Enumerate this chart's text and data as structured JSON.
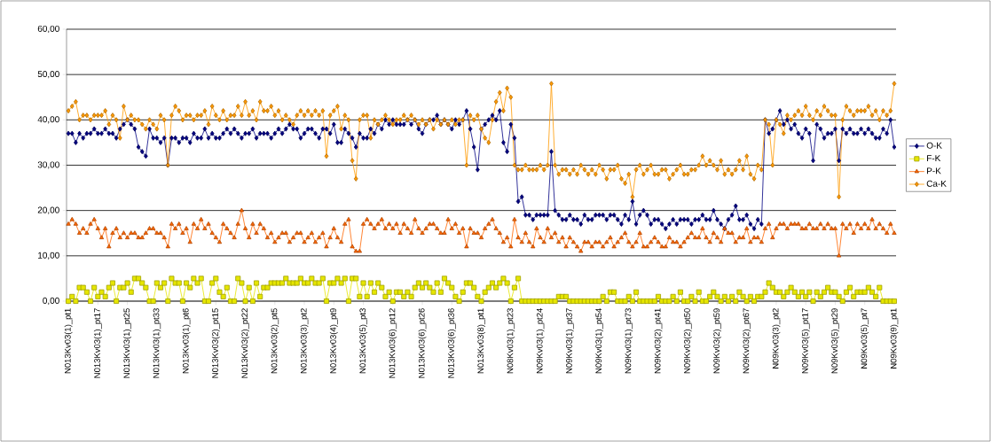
{
  "chart_data": {
    "type": "line",
    "categories": [
      "N013Kv03(1)_pt1",
      null,
      null,
      null,
      null,
      null,
      null,
      null,
      "N013Kv03(1)_pt17",
      null,
      null,
      null,
      null,
      null,
      null,
      null,
      "N013Kv03(1)_pt25",
      null,
      null,
      null,
      null,
      null,
      null,
      null,
      "N013Kv03(1)_pt33",
      null,
      null,
      null,
      null,
      null,
      null,
      null,
      "N013Kv03(1)_pt6",
      null,
      null,
      null,
      null,
      null,
      null,
      null,
      "N013Kv03(2)_pt15",
      null,
      null,
      null,
      null,
      null,
      null,
      null,
      "N013Kv03(2)_pt22",
      null,
      null,
      null,
      null,
      null,
      null,
      null,
      "N013Kv03(2)_pt5",
      null,
      null,
      null,
      null,
      null,
      null,
      null,
      "N013Kv03(3)_pt2",
      null,
      null,
      null,
      null,
      null,
      null,
      null,
      "N013Kv03(4)_pt9",
      null,
      null,
      null,
      null,
      null,
      null,
      null,
      "N013Kv03(5)_pt3",
      null,
      null,
      null,
      null,
      null,
      null,
      null,
      "N013Kv03(6)_pt12",
      null,
      null,
      null,
      null,
      null,
      null,
      null,
      "N013Kv03(6)_pt26",
      null,
      null,
      null,
      null,
      null,
      null,
      null,
      "N013Kv03(6)_pt36",
      null,
      null,
      null,
      null,
      null,
      null,
      null,
      "N013Kv03(8)_pt1",
      null,
      null,
      null,
      null,
      null,
      null,
      null,
      "N08Kv03(1)_pt23",
      null,
      null,
      null,
      null,
      null,
      null,
      null,
      "N09Kv03(1)_pt24",
      null,
      null,
      null,
      null,
      null,
      null,
      null,
      "N09Kv03(1)_pt37",
      null,
      null,
      null,
      null,
      null,
      null,
      null,
      "N09Kv03(1)_pt54",
      null,
      null,
      null,
      null,
      null,
      null,
      null,
      "N09Kv03(1)_pt73",
      null,
      null,
      null,
      null,
      null,
      null,
      null,
      "N09Kv03(2)_pt41",
      null,
      null,
      null,
      null,
      null,
      null,
      null,
      "N09Kv03(2)_pt50",
      null,
      null,
      null,
      null,
      null,
      null,
      null,
      "N09Kv03(2)_pt59",
      null,
      null,
      null,
      null,
      null,
      null,
      null,
      "N09Kv03(2)_pt67",
      null,
      null,
      null,
      null,
      null,
      null,
      null,
      "N09Kv03(3)_pt2",
      null,
      null,
      null,
      null,
      null,
      null,
      null,
      "N09Kv03(5)_pt17",
      null,
      null,
      null,
      null,
      null,
      null,
      null,
      "N09Kv03(5)_pt29",
      null,
      null,
      null,
      null,
      null,
      null,
      null,
      "N09Kv03(5)_pt7",
      null,
      null,
      null,
      null,
      null,
      null,
      null,
      "N09Kv03(9)_pt1"
    ],
    "series": [
      {
        "name": "O-K",
        "color": "#000080",
        "marker": "diamond",
        "values": [
          37,
          37,
          35,
          37,
          36,
          37,
          37,
          38,
          37,
          37,
          38,
          37,
          37,
          36,
          38,
          39,
          40,
          39,
          38,
          34,
          33,
          32,
          38,
          36,
          36,
          35,
          36,
          30,
          36,
          36,
          35,
          36,
          36,
          35,
          37,
          36,
          36,
          38,
          36,
          37,
          36,
          36,
          37,
          38,
          37,
          38,
          37,
          36,
          37,
          37,
          38,
          36,
          37,
          37,
          37,
          36,
          37,
          38,
          37,
          38,
          39,
          38,
          38,
          36,
          37,
          38,
          38,
          37,
          36,
          38,
          38,
          37,
          39,
          35,
          35,
          38,
          37,
          36,
          34,
          37,
          36,
          36,
          38,
          37,
          39,
          38,
          40,
          39,
          40,
          39,
          39,
          39,
          40,
          39,
          40,
          38,
          37,
          39,
          40,
          40,
          41,
          39,
          40,
          39,
          38,
          40,
          39,
          40,
          42,
          38,
          34,
          29,
          38,
          39,
          40,
          41,
          40,
          42,
          35,
          33,
          39,
          36,
          22,
          23,
          19,
          19,
          18,
          19,
          19,
          19,
          19,
          33,
          20,
          19,
          18,
          18,
          19,
          18,
          18,
          17,
          19,
          18,
          18,
          19,
          19,
          19,
          18,
          19,
          19,
          18,
          17,
          19,
          18,
          22,
          17,
          19,
          20,
          19,
          17,
          18,
          18,
          17,
          16,
          17,
          18,
          17,
          18,
          18,
          18,
          17,
          18,
          18,
          19,
          18,
          18,
          20,
          18,
          17,
          16,
          18,
          19,
          21,
          18,
          18,
          19,
          17,
          16,
          18,
          17,
          40,
          37,
          38,
          40,
          42,
          39,
          40,
          38,
          39,
          37,
          36,
          38,
          37,
          31,
          39,
          38,
          36,
          37,
          37,
          38,
          31,
          38,
          37,
          38,
          37,
          37,
          38,
          37,
          38,
          37,
          36,
          36,
          38,
          37,
          40,
          34
        ]
      },
      {
        "name": "F-K",
        "color": "#e6e600",
        "marker": "square",
        "values": [
          0,
          1,
          0,
          3,
          3,
          2,
          0,
          3,
          1,
          2,
          1,
          3,
          4,
          0,
          3,
          3,
          4,
          2,
          5,
          5,
          4,
          3,
          0,
          0,
          4,
          3,
          4,
          0,
          5,
          4,
          4,
          0,
          4,
          3,
          5,
          4,
          5,
          0,
          0,
          4,
          5,
          2,
          1,
          3,
          0,
          0,
          5,
          4,
          0,
          3,
          0,
          4,
          1,
          3,
          3,
          4,
          4,
          4,
          4,
          5,
          4,
          4,
          4,
          5,
          4,
          4,
          5,
          4,
          4,
          5,
          0,
          4,
          4,
          5,
          4,
          5,
          0,
          5,
          5,
          1,
          4,
          1,
          4,
          2,
          4,
          3,
          1,
          2,
          0,
          2,
          2,
          1,
          2,
          1,
          3,
          4,
          3,
          4,
          3,
          2,
          4,
          2,
          5,
          4,
          3,
          1,
          0,
          2,
          4,
          4,
          3,
          1,
          0,
          2,
          3,
          4,
          3,
          4,
          5,
          4,
          0,
          3,
          5,
          0,
          0,
          0,
          0,
          0,
          0,
          0,
          0,
          0,
          0,
          1,
          1,
          1,
          0,
          0,
          0,
          0,
          0,
          0,
          0,
          0,
          0,
          1,
          0,
          2,
          2,
          0,
          0,
          0,
          1,
          0,
          2,
          0,
          0,
          0,
          0,
          0,
          1,
          0,
          0,
          0,
          1,
          0,
          2,
          0,
          0,
          1,
          0,
          2,
          0,
          0,
          1,
          2,
          1,
          0,
          1,
          0,
          1,
          0,
          2,
          1,
          0,
          1,
          0,
          1,
          1,
          2,
          4,
          3,
          2,
          2,
          1,
          2,
          3,
          2,
          1,
          2,
          1,
          2,
          0,
          2,
          1,
          2,
          3,
          2,
          2,
          1,
          0,
          2,
          3,
          1,
          2,
          2,
          2,
          3,
          2,
          1,
          3,
          0,
          0,
          0,
          0
        ]
      },
      {
        "name": "P-K",
        "color": "#ff6600",
        "marker": "triangle",
        "values": [
          17,
          18,
          17,
          15,
          16,
          15,
          17,
          18,
          16,
          14,
          16,
          12,
          15,
          16,
          14,
          15,
          14,
          15,
          15,
          14,
          14,
          15,
          16,
          16,
          15,
          15,
          14,
          12,
          17,
          16,
          17,
          15,
          16,
          13,
          17,
          16,
          18,
          16,
          17,
          15,
          14,
          13,
          17,
          16,
          15,
          14,
          17,
          20,
          16,
          14,
          17,
          15,
          17,
          16,
          14,
          15,
          13,
          14,
          15,
          15,
          13,
          14,
          15,
          15,
          13,
          14,
          15,
          13,
          14,
          15,
          12,
          14,
          16,
          14,
          13,
          17,
          18,
          12,
          11,
          11,
          17,
          18,
          17,
          16,
          17,
          18,
          16,
          17,
          16,
          17,
          15,
          17,
          16,
          15,
          18,
          16,
          15,
          16,
          17,
          17,
          16,
          15,
          15,
          18,
          16,
          17,
          15,
          16,
          12,
          16,
          15,
          15,
          14,
          16,
          17,
          18,
          16,
          15,
          13,
          14,
          12,
          18,
          14,
          13,
          15,
          13,
          12,
          16,
          14,
          13,
          16,
          14,
          15,
          13,
          14,
          12,
          14,
          13,
          12,
          11,
          13,
          13,
          12,
          13,
          13,
          12,
          13,
          14,
          12,
          13,
          14,
          15,
          13,
          12,
          13,
          15,
          12,
          12,
          13,
          14,
          13,
          12,
          12,
          14,
          13,
          13,
          12,
          13,
          14,
          15,
          14,
          14,
          16,
          14,
          13,
          15,
          14,
          13,
          16,
          15,
          15,
          13,
          14,
          14,
          16,
          13,
          14,
          14,
          13,
          16,
          17,
          14,
          16,
          17,
          17,
          16,
          17,
          17,
          17,
          16,
          16,
          17,
          16,
          16,
          17,
          16,
          17,
          16,
          16,
          10,
          17,
          16,
          17,
          15,
          17,
          16,
          17,
          16,
          18,
          16,
          17,
          16,
          15,
          17,
          15
        ]
      },
      {
        "name": "Ca-K",
        "color": "#ff9900",
        "marker": "diamond",
        "values": [
          42,
          43,
          44,
          40,
          41,
          41,
          40,
          41,
          41,
          41,
          42,
          39,
          41,
          40,
          36,
          43,
          40,
          41,
          40,
          40,
          39,
          38,
          40,
          39,
          38,
          41,
          40,
          30,
          41,
          43,
          42,
          40,
          41,
          41,
          40,
          41,
          41,
          42,
          39,
          43,
          41,
          40,
          42,
          40,
          41,
          41,
          43,
          41,
          44,
          41,
          42,
          40,
          44,
          42,
          42,
          43,
          41,
          42,
          40,
          41,
          40,
          39,
          41,
          42,
          41,
          42,
          41,
          42,
          41,
          42,
          32,
          41,
          42,
          43,
          38,
          41,
          40,
          31,
          27,
          40,
          41,
          41,
          36,
          40,
          39,
          40,
          41,
          40,
          39,
          40,
          40,
          41,
          40,
          41,
          40,
          39,
          40,
          39,
          40,
          38,
          40,
          39,
          40,
          39,
          40,
          39,
          40,
          40,
          30,
          41,
          40,
          41,
          38,
          36,
          35,
          40,
          44,
          46,
          42,
          47,
          45,
          30,
          29,
          29,
          30,
          29,
          29,
          29,
          30,
          29,
          30,
          48,
          30,
          28,
          29,
          29,
          28,
          29,
          28,
          30,
          29,
          28,
          29,
          28,
          30,
          29,
          27,
          29,
          29,
          30,
          27,
          26,
          28,
          23,
          29,
          30,
          28,
          29,
          30,
          28,
          28,
          29,
          29,
          27,
          28,
          29,
          30,
          28,
          28,
          29,
          29,
          30,
          32,
          30,
          31,
          30,
          29,
          31,
          28,
          29,
          28,
          29,
          31,
          29,
          32,
          28,
          27,
          30,
          29,
          40,
          39,
          30,
          40,
          39,
          37,
          41,
          40,
          41,
          42,
          41,
          43,
          41,
          40,
          42,
          41,
          43,
          42,
          41,
          41,
          23,
          40,
          43,
          42,
          41,
          42,
          42,
          42,
          43,
          41,
          42,
          40,
          42,
          41,
          42,
          48
        ]
      }
    ],
    "ylim": [
      0,
      60
    ],
    "yticks": [
      {
        "value": 0,
        "label": "0,00"
      },
      {
        "value": 10,
        "label": "10,00"
      },
      {
        "value": 20,
        "label": "20,00"
      },
      {
        "value": 30,
        "label": "30,00"
      },
      {
        "value": 40,
        "label": "40,00"
      },
      {
        "value": 50,
        "label": "50,00"
      },
      {
        "value": 60,
        "label": "60,00"
      }
    ],
    "grid": "y",
    "legend": "right",
    "line_style": "solid"
  }
}
